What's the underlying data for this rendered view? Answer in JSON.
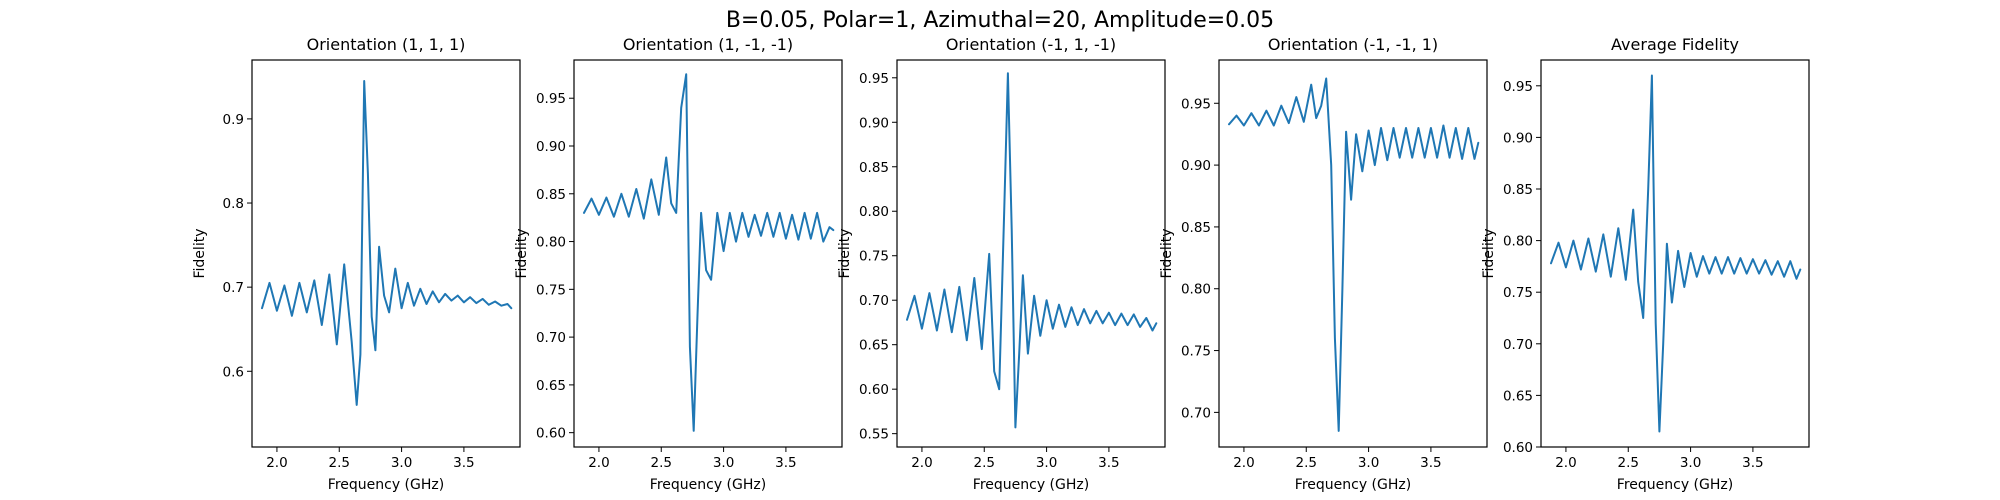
{
  "figure": {
    "suptitle": "B=0.05, Polar=1, Azimuthal=20, Amplitude=0.05"
  },
  "chart_data": [
    {
      "type": "line",
      "title": "Orientation (1, 1, 1)",
      "xlabel": "Frequency (GHz)",
      "ylabel": "Fidelity",
      "xlim": [
        1.8,
        3.95
      ],
      "ylim": [
        0.51,
        0.97
      ],
      "xticks": [
        2.0,
        2.5,
        3.0,
        3.5
      ],
      "yticks": [
        0.6,
        0.7,
        0.8,
        0.9
      ],
      "color": "#1f77b4",
      "series": [
        {
          "x": [
            1.88,
            1.94,
            2.0,
            2.06,
            2.12,
            2.18,
            2.24,
            2.3,
            2.36,
            2.42,
            2.48,
            2.54,
            2.6,
            2.64,
            2.67,
            2.7,
            2.73,
            2.76,
            2.79,
            2.82,
            2.86,
            2.9,
            2.95,
            3.0,
            3.05,
            3.1,
            3.15,
            3.2,
            3.25,
            3.3,
            3.35,
            3.4,
            3.45,
            3.5,
            3.55,
            3.6,
            3.65,
            3.7,
            3.75,
            3.8,
            3.85,
            3.88
          ],
          "y": [
            0.675,
            0.705,
            0.672,
            0.702,
            0.666,
            0.705,
            0.67,
            0.708,
            0.655,
            0.715,
            0.632,
            0.727,
            0.635,
            0.56,
            0.62,
            0.945,
            0.835,
            0.665,
            0.625,
            0.748,
            0.69,
            0.67,
            0.722,
            0.675,
            0.705,
            0.678,
            0.698,
            0.68,
            0.695,
            0.682,
            0.692,
            0.684,
            0.69,
            0.682,
            0.688,
            0.681,
            0.686,
            0.679,
            0.683,
            0.678,
            0.68,
            0.675
          ]
        }
      ]
    },
    {
      "type": "line",
      "title": "Orientation (1, -1, -1)",
      "xlabel": "Frequency (GHz)",
      "ylabel": "Fidelity",
      "xlim": [
        1.8,
        3.95
      ],
      "ylim": [
        0.585,
        0.99
      ],
      "xticks": [
        2.0,
        2.5,
        3.0,
        3.5
      ],
      "yticks": [
        0.6,
        0.65,
        0.7,
        0.75,
        0.8,
        0.85,
        0.9,
        0.95
      ],
      "color": "#1f77b4",
      "series": [
        {
          "x": [
            1.88,
            1.94,
            2.0,
            2.06,
            2.12,
            2.18,
            2.24,
            2.3,
            2.36,
            2.42,
            2.48,
            2.54,
            2.58,
            2.62,
            2.66,
            2.7,
            2.73,
            2.76,
            2.79,
            2.82,
            2.86,
            2.9,
            2.95,
            3.0,
            3.05,
            3.1,
            3.15,
            3.2,
            3.25,
            3.3,
            3.35,
            3.4,
            3.45,
            3.5,
            3.55,
            3.6,
            3.65,
            3.7,
            3.75,
            3.8,
            3.85,
            3.88
          ],
          "y": [
            0.83,
            0.845,
            0.828,
            0.846,
            0.826,
            0.85,
            0.826,
            0.855,
            0.824,
            0.865,
            0.828,
            0.888,
            0.84,
            0.83,
            0.94,
            0.975,
            0.69,
            0.602,
            0.72,
            0.83,
            0.77,
            0.76,
            0.83,
            0.79,
            0.83,
            0.8,
            0.83,
            0.805,
            0.828,
            0.806,
            0.83,
            0.805,
            0.83,
            0.803,
            0.828,
            0.802,
            0.83,
            0.803,
            0.83,
            0.8,
            0.815,
            0.812
          ]
        }
      ]
    },
    {
      "type": "line",
      "title": "Orientation (-1, 1, -1)",
      "xlabel": "Frequency (GHz)",
      "ylabel": "Fidelity",
      "xlim": [
        1.8,
        3.95
      ],
      "ylim": [
        0.535,
        0.97
      ],
      "xticks": [
        2.0,
        2.5,
        3.0,
        3.5
      ],
      "yticks": [
        0.55,
        0.6,
        0.65,
        0.7,
        0.75,
        0.8,
        0.85,
        0.9,
        0.95
      ],
      "color": "#1f77b4",
      "series": [
        {
          "x": [
            1.88,
            1.94,
            2.0,
            2.06,
            2.12,
            2.18,
            2.24,
            2.3,
            2.36,
            2.42,
            2.48,
            2.54,
            2.58,
            2.62,
            2.66,
            2.69,
            2.72,
            2.75,
            2.78,
            2.81,
            2.85,
            2.9,
            2.95,
            3.0,
            3.05,
            3.1,
            3.15,
            3.2,
            3.25,
            3.3,
            3.35,
            3.4,
            3.45,
            3.5,
            3.55,
            3.6,
            3.65,
            3.7,
            3.75,
            3.8,
            3.85,
            3.88
          ],
          "y": [
            0.678,
            0.705,
            0.668,
            0.708,
            0.666,
            0.712,
            0.664,
            0.715,
            0.655,
            0.725,
            0.645,
            0.752,
            0.62,
            0.6,
            0.8,
            0.955,
            0.78,
            0.557,
            0.64,
            0.728,
            0.64,
            0.705,
            0.66,
            0.7,
            0.668,
            0.695,
            0.67,
            0.692,
            0.672,
            0.69,
            0.674,
            0.688,
            0.674,
            0.686,
            0.672,
            0.685,
            0.672,
            0.684,
            0.67,
            0.68,
            0.666,
            0.674
          ]
        }
      ]
    },
    {
      "type": "line",
      "title": "Orientation (-1, -1, 1)",
      "xlabel": "Frequency (GHz)",
      "ylabel": "Fidelity",
      "xlim": [
        1.8,
        3.95
      ],
      "ylim": [
        0.672,
        0.985
      ],
      "xticks": [
        2.0,
        2.5,
        3.0,
        3.5
      ],
      "yticks": [
        0.7,
        0.75,
        0.8,
        0.85,
        0.9,
        0.95
      ],
      "color": "#1f77b4",
      "series": [
        {
          "x": [
            1.88,
            1.94,
            2.0,
            2.06,
            2.12,
            2.18,
            2.24,
            2.3,
            2.36,
            2.42,
            2.48,
            2.54,
            2.58,
            2.62,
            2.66,
            2.7,
            2.73,
            2.76,
            2.79,
            2.82,
            2.86,
            2.9,
            2.95,
            3.0,
            3.05,
            3.1,
            3.15,
            3.2,
            3.25,
            3.3,
            3.35,
            3.4,
            3.45,
            3.5,
            3.55,
            3.6,
            3.65,
            3.7,
            3.75,
            3.8,
            3.85,
            3.88
          ],
          "y": [
            0.933,
            0.94,
            0.932,
            0.942,
            0.932,
            0.944,
            0.932,
            0.948,
            0.934,
            0.955,
            0.935,
            0.965,
            0.938,
            0.948,
            0.97,
            0.9,
            0.76,
            0.685,
            0.8,
            0.927,
            0.872,
            0.925,
            0.895,
            0.928,
            0.9,
            0.93,
            0.904,
            0.93,
            0.906,
            0.93,
            0.906,
            0.93,
            0.906,
            0.93,
            0.906,
            0.932,
            0.906,
            0.93,
            0.905,
            0.93,
            0.905,
            0.918
          ]
        }
      ]
    },
    {
      "type": "line",
      "title": "Average Fidelity",
      "xlabel": "Frequency (GHz)",
      "ylabel": "Fidelity",
      "xlim": [
        1.8,
        3.95
      ],
      "ylim": [
        0.6,
        0.975
      ],
      "xticks": [
        2.0,
        2.5,
        3.0,
        3.5
      ],
      "yticks": [
        0.6,
        0.65,
        0.7,
        0.75,
        0.8,
        0.85,
        0.9,
        0.95
      ],
      "color": "#1f77b4",
      "series": [
        {
          "x": [
            1.88,
            1.94,
            2.0,
            2.06,
            2.12,
            2.18,
            2.24,
            2.3,
            2.36,
            2.42,
            2.48,
            2.54,
            2.58,
            2.62,
            2.66,
            2.69,
            2.72,
            2.75,
            2.78,
            2.81,
            2.85,
            2.9,
            2.95,
            3.0,
            3.05,
            3.1,
            3.15,
            3.2,
            3.25,
            3.3,
            3.35,
            3.4,
            3.45,
            3.5,
            3.55,
            3.6,
            3.65,
            3.7,
            3.75,
            3.8,
            3.85,
            3.88
          ],
          "y": [
            0.778,
            0.798,
            0.774,
            0.8,
            0.772,
            0.802,
            0.77,
            0.806,
            0.765,
            0.812,
            0.762,
            0.83,
            0.76,
            0.725,
            0.85,
            0.96,
            0.72,
            0.615,
            0.7,
            0.797,
            0.74,
            0.79,
            0.755,
            0.788,
            0.765,
            0.785,
            0.768,
            0.784,
            0.768,
            0.784,
            0.768,
            0.783,
            0.768,
            0.782,
            0.768,
            0.781,
            0.767,
            0.78,
            0.765,
            0.78,
            0.763,
            0.772
          ]
        }
      ]
    }
  ]
}
